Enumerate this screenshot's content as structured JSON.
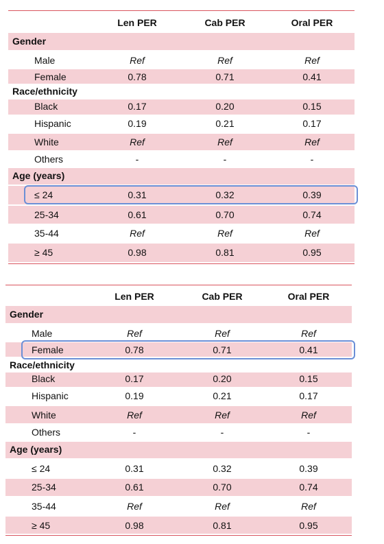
{
  "tables": [
    {
      "columns": [
        "Len PER",
        "Cab PER",
        "Oral PER"
      ],
      "rows": [
        {
          "label": "Gender"
        },
        {
          "label": "Male",
          "cells": [
            "Ref",
            "Ref",
            "Ref"
          ]
        },
        {
          "label": "Female",
          "cells": [
            "0.78",
            "0.71",
            "0.41"
          ]
        },
        {
          "label": "Race/ethnicity"
        },
        {
          "label": "Black",
          "cells": [
            "0.17",
            "0.20",
            "0.15"
          ]
        },
        {
          "label": "Hispanic",
          "cells": [
            "0.19",
            "0.21",
            "0.17"
          ]
        },
        {
          "label": "White",
          "cells": [
            "Ref",
            "Ref",
            "Ref"
          ]
        },
        {
          "label": "Others",
          "cells": [
            "-",
            "-",
            "-"
          ]
        },
        {
          "label": "Age (years)"
        },
        {
          "label": "≤ 24",
          "cells": [
            "0.31",
            "0.32",
            "0.39"
          ]
        },
        {
          "label": "25-34",
          "cells": [
            "0.61",
            "0.70",
            "0.74"
          ]
        },
        {
          "label": "35-44",
          "cells": [
            "Ref",
            "Ref",
            "Ref"
          ]
        },
        {
          "label": "≥ 45",
          "cells": [
            "0.98",
            "0.81",
            "0.95"
          ]
        }
      ]
    },
    {
      "columns": [
        "Len PER",
        "Cab PER",
        "Oral PER"
      ],
      "rows": [
        {
          "label": "Gender"
        },
        {
          "label": "Male",
          "cells": [
            "Ref",
            "Ref",
            "Ref"
          ]
        },
        {
          "label": "Female",
          "cells": [
            "0.78",
            "0.71",
            "0.41"
          ]
        },
        {
          "label": "Race/ethnicity"
        },
        {
          "label": "Black",
          "cells": [
            "0.17",
            "0.20",
            "0.15"
          ]
        },
        {
          "label": "Hispanic",
          "cells": [
            "0.19",
            "0.21",
            "0.17"
          ]
        },
        {
          "label": "White",
          "cells": [
            "Ref",
            "Ref",
            "Ref"
          ]
        },
        {
          "label": "Others",
          "cells": [
            "-",
            "-",
            "-"
          ]
        },
        {
          "label": "Age (years)"
        },
        {
          "label": "≤ 24",
          "cells": [
            "0.31",
            "0.32",
            "0.39"
          ]
        },
        {
          "label": "25-34",
          "cells": [
            "0.61",
            "0.70",
            "0.74"
          ]
        },
        {
          "label": "35-44",
          "cells": [
            "Ref",
            "Ref",
            "Ref"
          ]
        },
        {
          "label": "≥ 45",
          "cells": [
            "0.98",
            "0.81",
            "0.95"
          ]
        }
      ]
    }
  ]
}
